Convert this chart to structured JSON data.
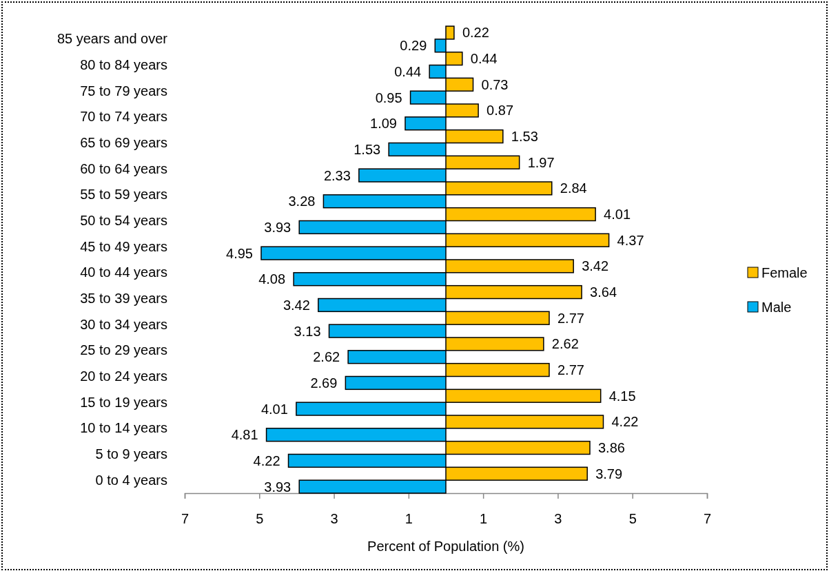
{
  "chart_data": {
    "type": "bar",
    "orientation": "horizontal",
    "xlabel": "Percent of Population (%)",
    "categories": [
      "85 years and over",
      "80 to 84 years",
      "75 to 79 years",
      "70 to 74 years",
      "65 to 69 years",
      "60 to 64 years",
      "55 to 59 years",
      "50 to 54 years",
      "45 to 49 years",
      "40 to 44 years",
      "35 to 39 years",
      "30 to 34 years",
      "25 to 29 years",
      "20 to 24 years",
      "15 to 19 years",
      "10 to 14 years",
      "5 to 9 years",
      "0 to 4 years"
    ],
    "series": [
      {
        "name": "Female",
        "color": "#ffc000",
        "values": [
          0.22,
          0.44,
          0.73,
          0.87,
          1.53,
          1.97,
          2.84,
          4.01,
          4.37,
          3.42,
          3.64,
          2.77,
          2.62,
          2.77,
          4.15,
          4.22,
          3.86,
          3.79
        ],
        "value_labels": [
          "0.22",
          "0.44",
          "0.73",
          "0.87",
          "1.53",
          "1.97",
          "2.84",
          "4.01",
          "4.37",
          "3.42",
          "3.64",
          "2.77",
          "2.62",
          "2.77",
          "4.15",
          "4.22",
          "3.86",
          "3.79"
        ]
      },
      {
        "name": "Male",
        "color": "#00b0f0",
        "values": [
          0.29,
          0.44,
          0.95,
          1.09,
          1.53,
          2.33,
          3.28,
          3.93,
          4.95,
          4.08,
          3.42,
          3.13,
          2.62,
          2.69,
          4.01,
          4.81,
          4.22,
          3.93
        ],
        "base": [
          -0.29,
          -0.44,
          -0.95,
          -1.09,
          -1.53,
          -2.33,
          -3.28,
          -3.93,
          -4.95,
          -4.08,
          -3.42,
          -3.13,
          -2.62,
          -2.69,
          -4.01,
          -4.81,
          -4.22,
          -3.93
        ],
        "value_labels": [
          "0.29",
          "0.44",
          "0.95",
          "1.09",
          "1.53",
          "2.33",
          "3.28",
          "3.93",
          "4.95",
          "4.08",
          "3.42",
          "3.13",
          "2.62",
          "2.69",
          "4.01",
          "4.81",
          "4.22",
          "3.93"
        ]
      }
    ],
    "xlim": [
      -7,
      7
    ],
    "xticks": [
      {
        "value": -7,
        "label": "7"
      },
      {
        "value": -5,
        "label": "5"
      },
      {
        "value": -3,
        "label": "3"
      },
      {
        "value": -1,
        "label": "1"
      },
      {
        "value": 1,
        "label": "1"
      },
      {
        "value": 3,
        "label": "3"
      },
      {
        "value": 5,
        "label": "5"
      },
      {
        "value": 7,
        "label": "7"
      }
    ],
    "legend": "right",
    "grid": false
  }
}
